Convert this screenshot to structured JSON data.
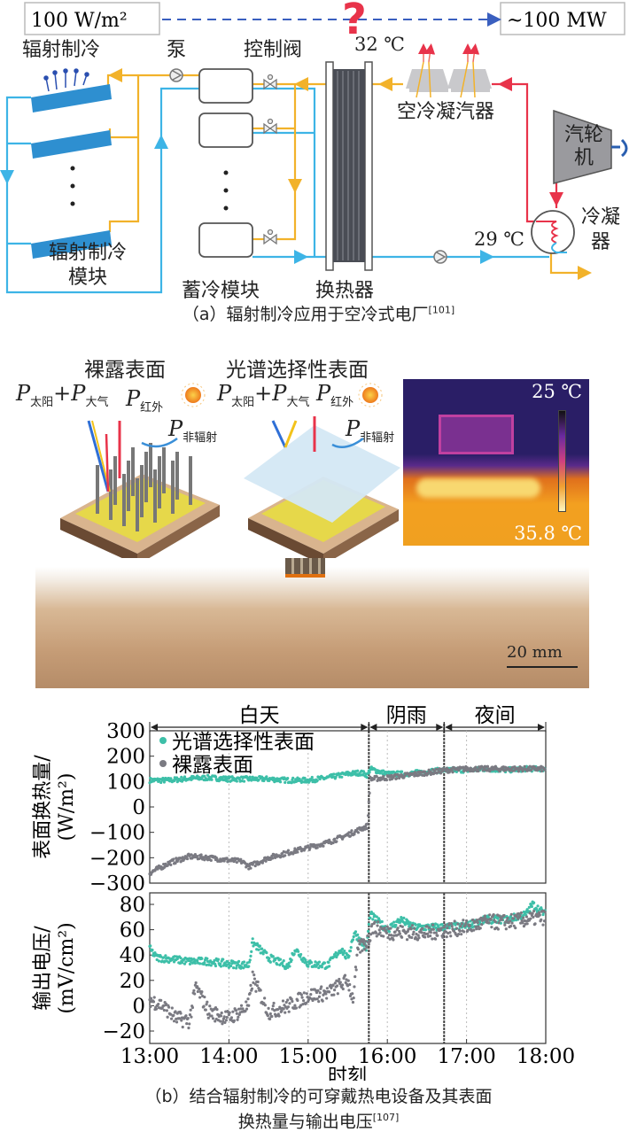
{
  "figure_a": {
    "input_box": "100 W/m²",
    "output_box": "~100 MW",
    "question_mark": "?",
    "labels": {
      "radiative_cooling": "辐射制冷",
      "pump": "泵",
      "control_valve": "控制阀",
      "temp_hot": "32 ℃",
      "air_condenser": "空冷凝汽器",
      "turbine": "汽轮机",
      "condenser": "冷凝器",
      "temp_cold": "29 ℃",
      "radiative_module_line1": "辐射制冷",
      "radiative_module_line2": "模块",
      "storage_module": "蓄冷模块",
      "heat_exchanger": "换热器"
    },
    "caption": "（a）辐射制冷应用于空冷式电厂",
    "caption_ref": "[101]",
    "colors": {
      "cold_loop": "#3db4e6",
      "warm_loop": "#f2b22a",
      "steam": "#e8334a",
      "panel": "#2e8fd0"
    }
  },
  "figure_b": {
    "bare_surface_title": "裸露表面",
    "selective_surface_title": "光谱选择性表面",
    "p_symbol": "P",
    "sub_solar": "太阳",
    "sub_atm": "大气",
    "sub_ir": "红外",
    "sub_nonrad": "非辐射",
    "plus": "+",
    "thermal_max": "25 ℃",
    "thermal_min": "35.8 ℃",
    "scale_bar": "20 mm",
    "caption_line1": "（b）结合辐射制冷的可穿戴热电设备及其表面",
    "caption_line2": "换热量与输出电压",
    "caption_ref": "[107]"
  },
  "chart_data": {
    "type": "line",
    "xlabel": "时刻",
    "x_ticks": [
      "13:00",
      "14:00",
      "15:00",
      "16:00",
      "17:00",
      "18:00"
    ],
    "xlim": [
      "13:00",
      "18:00"
    ],
    "periods": [
      {
        "label": "白天",
        "from": "13:00",
        "to": "15:46"
      },
      {
        "label": "阴雨",
        "from": "15:46",
        "to": "16:43"
      },
      {
        "label": "夜间",
        "from": "16:43",
        "to": "18:00"
      }
    ],
    "legend": [
      "光谱选择性表面",
      "裸露表面"
    ],
    "legend_placement": "top-left",
    "colors": {
      "selective": "#3dbfa8",
      "bare": "#7a7a82"
    },
    "panels": [
      {
        "ylabel_line1": "表面换热量/",
        "ylabel_line2": "(W/m²)",
        "ylim": [
          -300,
          300
        ],
        "y_ticks": [
          "300",
          "200",
          "100",
          "0",
          "−100",
          "−200",
          "−300"
        ],
        "y_tick_values": [
          300,
          200,
          100,
          0,
          -100,
          -200,
          -300
        ],
        "series": [
          {
            "name": "光谱选择性表面",
            "key": "selective",
            "points": [
              [
                "13:00",
                105
              ],
              [
                "13:15",
                105
              ],
              [
                "13:30",
                112
              ],
              [
                "13:45",
                115
              ],
              [
                "14:00",
                110
              ],
              [
                "14:15",
                110
              ],
              [
                "14:30",
                110
              ],
              [
                "14:45",
                105
              ],
              [
                "15:00",
                105
              ],
              [
                "15:15",
                115
              ],
              [
                "15:30",
                130
              ],
              [
                "15:40",
                135
              ],
              [
                "15:45",
                125
              ],
              [
                "15:47",
                150
              ],
              [
                "16:00",
                130
              ],
              [
                "16:15",
                130
              ],
              [
                "16:30",
                140
              ],
              [
                "16:45",
                145
              ],
              [
                "17:00",
                145
              ],
              [
                "17:15",
                150
              ],
              [
                "17:30",
                145
              ],
              [
                "17:45",
                150
              ],
              [
                "18:00",
                150
              ]
            ]
          },
          {
            "name": "裸露表面",
            "key": "bare",
            "points": [
              [
                "13:00",
                -260
              ],
              [
                "13:15",
                -220
              ],
              [
                "13:30",
                -195
              ],
              [
                "13:45",
                -200
              ],
              [
                "14:00",
                -210
              ],
              [
                "14:10",
                -215
              ],
              [
                "14:15",
                -235
              ],
              [
                "14:30",
                -200
              ],
              [
                "14:45",
                -180
              ],
              [
                "15:00",
                -160
              ],
              [
                "15:15",
                -140
              ],
              [
                "15:30",
                -110
              ],
              [
                "15:45",
                -75
              ],
              [
                "15:47",
                110
              ],
              [
                "16:00",
                115
              ],
              [
                "16:15",
                125
              ],
              [
                "16:30",
                135
              ],
              [
                "16:45",
                145
              ],
              [
                "17:00",
                150
              ],
              [
                "17:15",
                150
              ],
              [
                "17:30",
                150
              ],
              [
                "17:45",
                150
              ],
              [
                "18:00",
                150
              ]
            ]
          }
        ]
      },
      {
        "ylabel_line1": "输出电压/",
        "ylabel_line2": "(mV/cm²)",
        "ylim": [
          -30,
          90
        ],
        "y_ticks": [
          "80",
          "60",
          "40",
          "20",
          "0",
          "−20"
        ],
        "y_tick_values": [
          80,
          60,
          40,
          20,
          0,
          -20
        ],
        "series": [
          {
            "name": "光谱选择性表面",
            "key": "selective",
            "points": [
              [
                "13:00",
                45
              ],
              [
                "13:05",
                38
              ],
              [
                "13:15",
                37
              ],
              [
                "13:30",
                35
              ],
              [
                "13:45",
                35
              ],
              [
                "14:00",
                33
              ],
              [
                "14:15",
                32
              ],
              [
                "14:18",
                50
              ],
              [
                "14:30",
                38
              ],
              [
                "14:45",
                31
              ],
              [
                "14:50",
                45
              ],
              [
                "15:00",
                33
              ],
              [
                "15:15",
                32
              ],
              [
                "15:25",
                45
              ],
              [
                "15:30",
                37
              ],
              [
                "15:35",
                58
              ],
              [
                "15:44",
                45
              ],
              [
                "15:47",
                72
              ],
              [
                "16:00",
                60
              ],
              [
                "16:10",
                68
              ],
              [
                "16:20",
                62
              ],
              [
                "16:30",
                62
              ],
              [
                "16:45",
                62
              ],
              [
                "17:00",
                63
              ],
              [
                "17:15",
                68
              ],
              [
                "17:30",
                68
              ],
              [
                "17:45",
                72
              ],
              [
                "17:50",
                80
              ],
              [
                "18:00",
                72
              ]
            ]
          },
          {
            "name": "裸露表面",
            "key": "bare",
            "points": [
              [
                "13:00",
                5
              ],
              [
                "13:10",
                0
              ],
              [
                "13:20",
                -10
              ],
              [
                "13:30",
                -12
              ],
              [
                "13:35",
                15
              ],
              [
                "13:45",
                -5
              ],
              [
                "14:00",
                -10
              ],
              [
                "14:15",
                0
              ],
              [
                "14:18",
                22
              ],
              [
                "14:30",
                -5
              ],
              [
                "14:45",
                0
              ],
              [
                "15:00",
                8
              ],
              [
                "15:15",
                10
              ],
              [
                "15:30",
                20
              ],
              [
                "15:34",
                5
              ],
              [
                "15:38",
                45
              ],
              [
                "15:46",
                52
              ],
              [
                "15:48",
                62
              ],
              [
                "16:00",
                58
              ],
              [
                "16:15",
                58
              ],
              [
                "16:30",
                57
              ],
              [
                "16:45",
                60
              ],
              [
                "17:00",
                62
              ],
              [
                "17:15",
                66
              ],
              [
                "17:30",
                66
              ],
              [
                "17:45",
                68
              ],
              [
                "18:00",
                70
              ]
            ]
          }
        ]
      }
    ]
  }
}
